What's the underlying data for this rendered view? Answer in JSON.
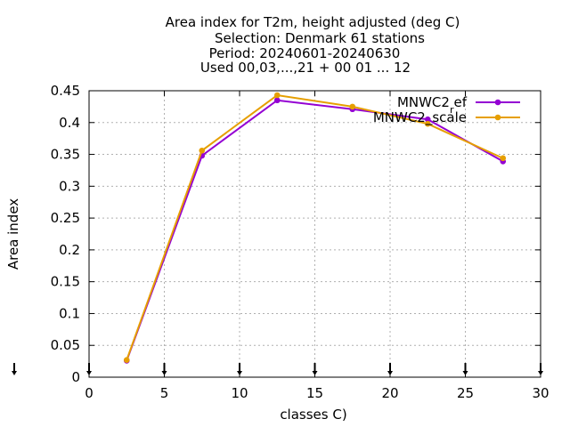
{
  "chart_data": {
    "type": "line",
    "title_lines": [
      "Area index  for T2m, height adjusted (deg C)",
      "Selection: Denmark     61 stations",
      "Period: 20240601-20240630",
      "Used 00,03,...,21 + 00 01 ... 12"
    ],
    "xlabel": "classes C)",
    "ylabel": "Area index",
    "xlim": [
      0,
      30
    ],
    "ylim": [
      0,
      0.45
    ],
    "x_ticks": [
      "0",
      "5",
      "10",
      "15",
      "20",
      "25",
      "30"
    ],
    "y_ticks": [
      "0",
      "0.05",
      "0.1",
      "0.15",
      "0.2",
      "0.25",
      "0.3",
      "0.35",
      "0.4",
      "0.45"
    ],
    "grid": true,
    "legend_position": "top-right",
    "series": [
      {
        "name": "MNWC2_ref",
        "legend_label": "MNWC2",
        "legend_sub": "r",
        "legend_tail": "ef",
        "color": "#9400d3",
        "x": [
          2.5,
          7.5,
          12.5,
          17.5,
          22.5,
          27.5
        ],
        "y": [
          0.026,
          0.348,
          0.435,
          0.421,
          0.405,
          0.339
        ]
      },
      {
        "name": "MNWC2_scale",
        "legend_label": "MNWC2",
        "legend_sub": "",
        "legend_tail": "_scale",
        "color": "#e69f00",
        "x": [
          2.5,
          7.5,
          12.5,
          17.5,
          22.5,
          27.5
        ],
        "y": [
          0.027,
          0.356,
          0.443,
          0.425,
          0.398,
          0.344
        ]
      }
    ]
  }
}
